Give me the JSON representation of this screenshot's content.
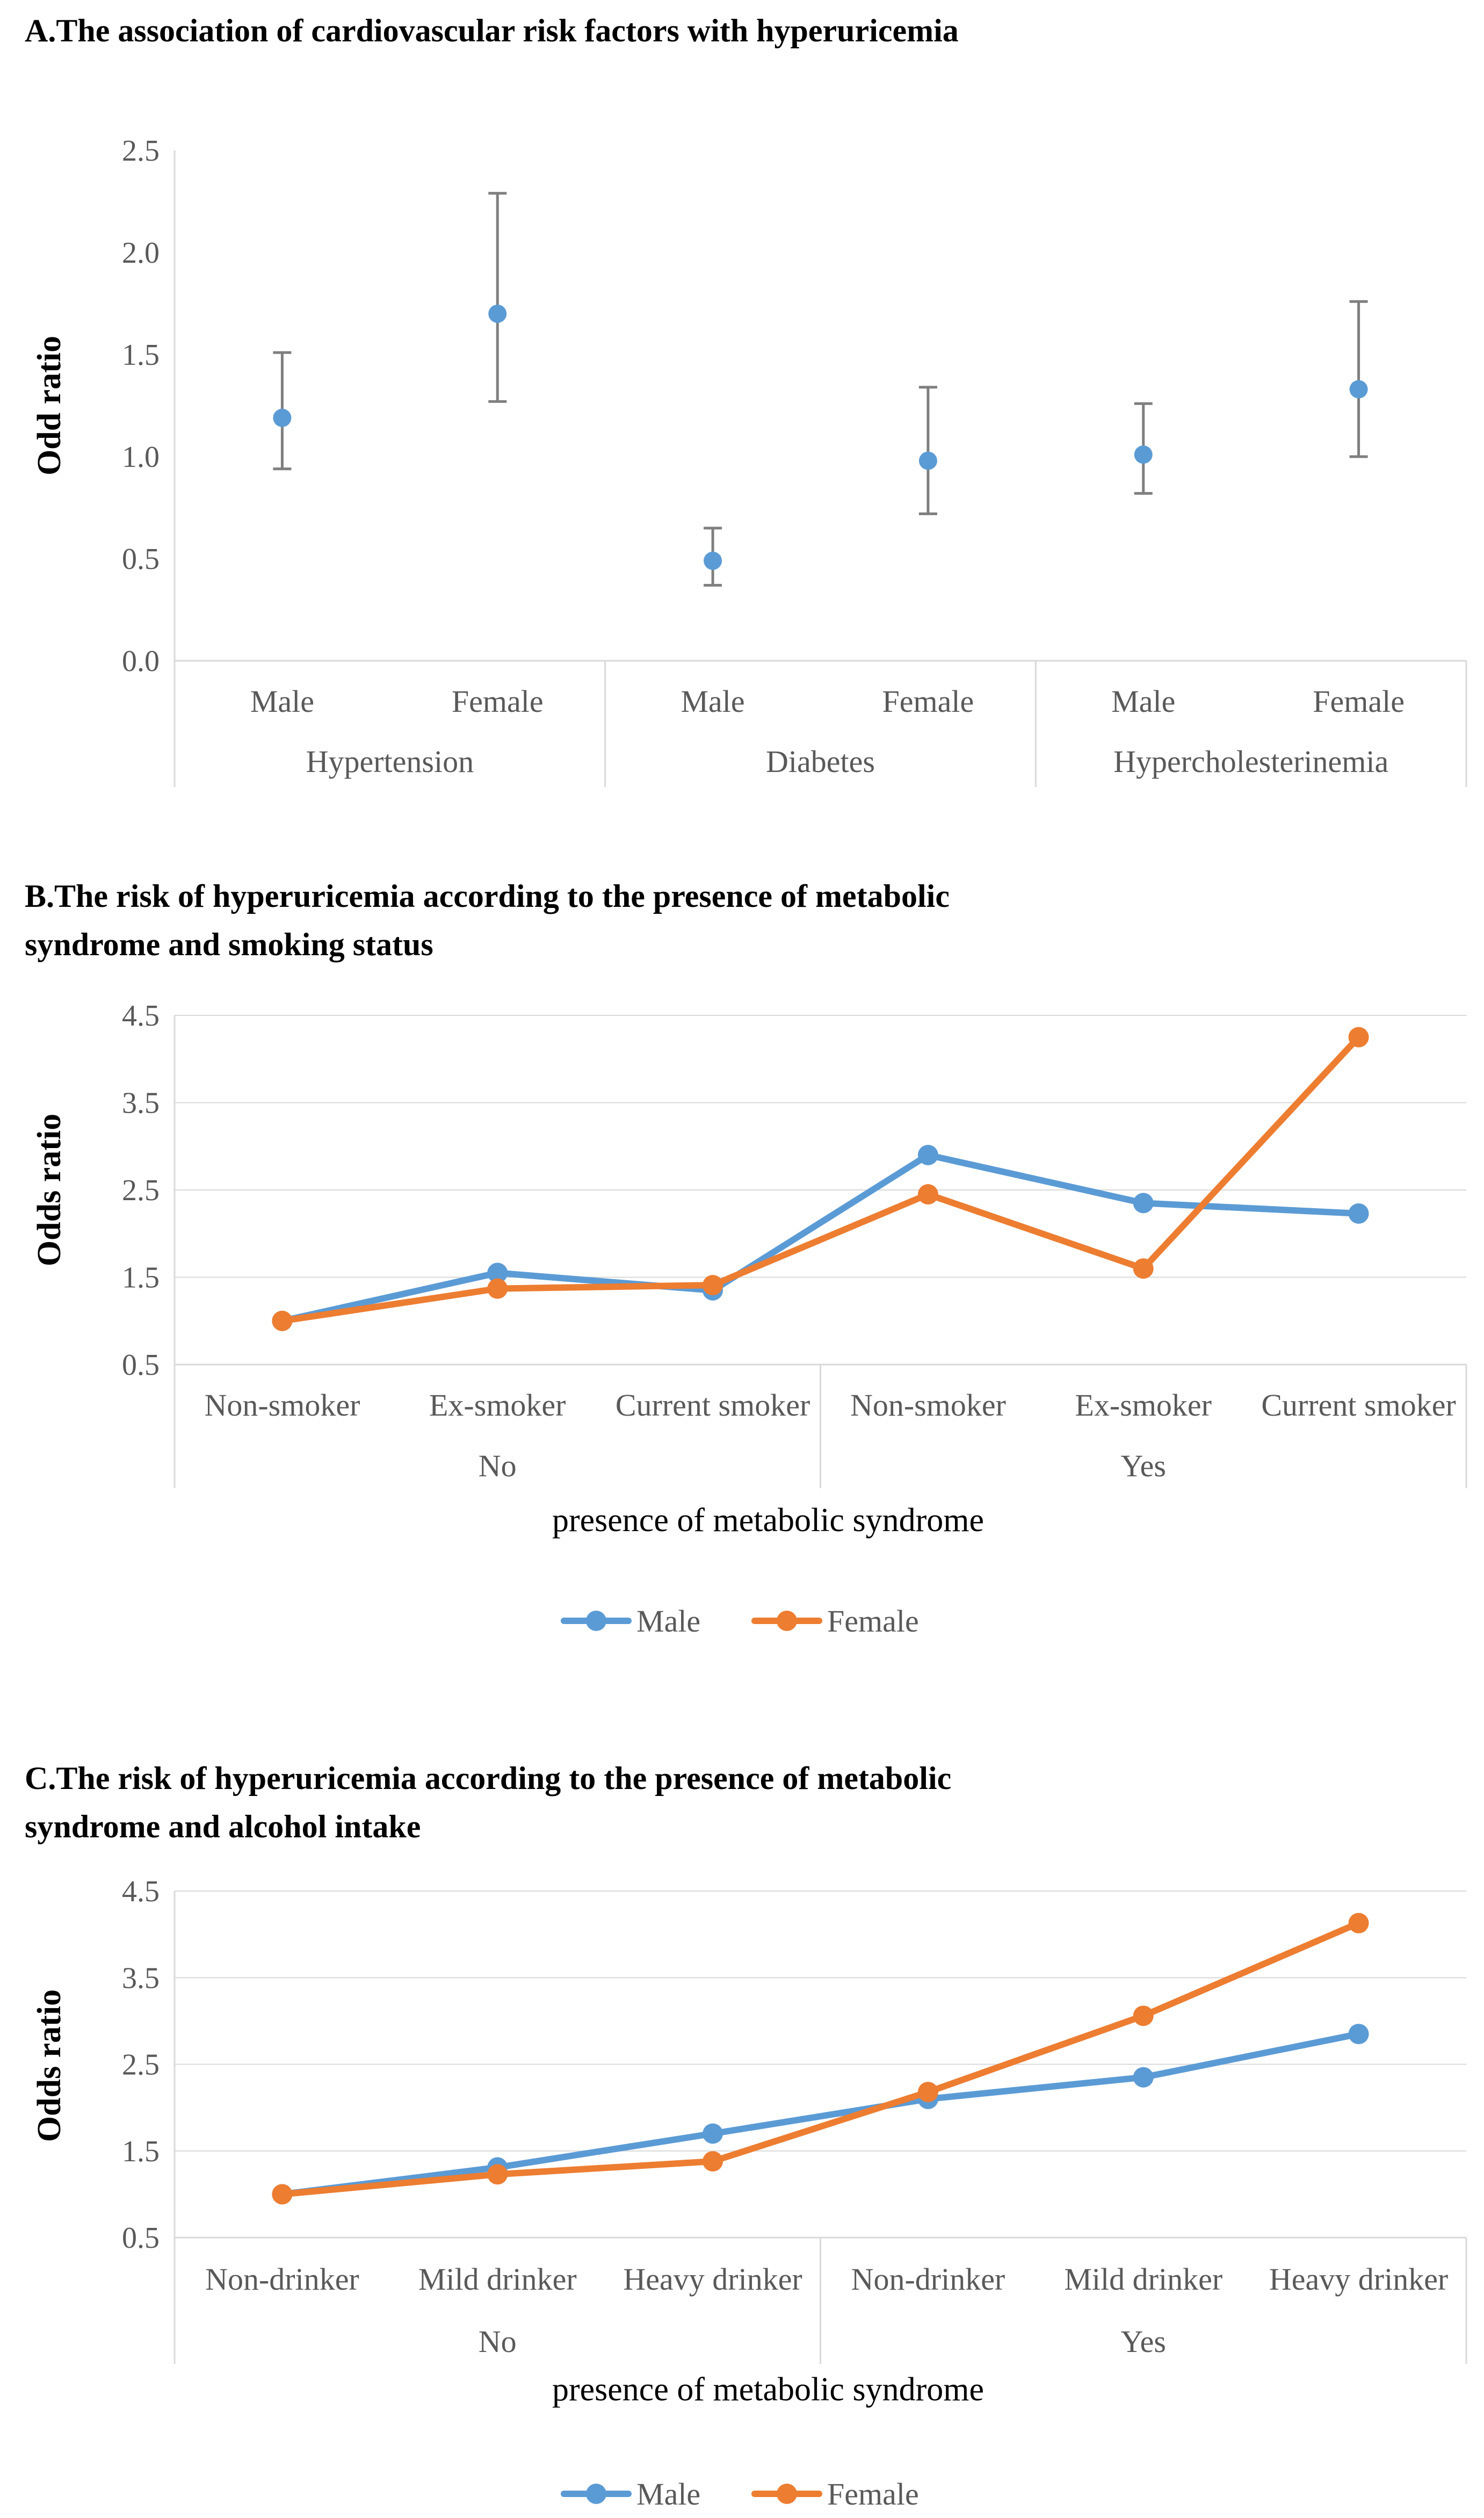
{
  "chart_data": [
    {
      "type": "scatter",
      "subtype": "error-bar",
      "title": "A.The association of cardiovascular risk factors with hyperuricemia",
      "ylabel": "Odd ratio",
      "ylim": [
        0,
        2.5
      ],
      "yticks": [
        "0.0",
        "0.5",
        "1.0",
        "1.5",
        "2.0",
        "2.5"
      ],
      "groups": [
        {
          "label": "Hypertension",
          "categories": [
            "Male",
            "Female"
          ]
        },
        {
          "label": "Diabetes",
          "categories": [
            "Male",
            "Female"
          ]
        },
        {
          "label": "Hypercholesterinemia",
          "categories": [
            "Male",
            "Female"
          ]
        }
      ],
      "values": [
        1.19,
        1.7,
        0.49,
        0.98,
        1.01,
        1.33
      ],
      "lower": [
        0.94,
        1.27,
        0.37,
        0.72,
        0.82,
        1.0
      ],
      "upper": [
        1.51,
        2.29,
        0.65,
        1.34,
        1.26,
        1.76
      ],
      "color": "#5b9bd5",
      "errorbar_color": "#7f7f7f"
    },
    {
      "type": "line",
      "title_lines": [
        "B.The risk of hyperuricemia according to the presence of metabolic",
        "syndrome and smoking status"
      ],
      "ylabel": "Odds ratio",
      "xlabel": "presence of metabolic syndrome",
      "ylim": [
        0.5,
        4.5
      ],
      "yticks": [
        "0.5",
        "1.5",
        "2.5",
        "3.5",
        "4.5"
      ],
      "groups": [
        {
          "label": "No",
          "categories": [
            "Non-smoker",
            "Ex-smoker",
            "Current smoker"
          ]
        },
        {
          "label": "Yes",
          "categories": [
            "Non-smoker",
            "Ex-smoker",
            "Current smoker"
          ]
        }
      ],
      "series": [
        {
          "name": "Male",
          "color": "#5b9bd5",
          "values": [
            1.0,
            1.55,
            1.35,
            2.9,
            2.35,
            2.23
          ]
        },
        {
          "name": "Female",
          "color": "#ed7d31",
          "values": [
            1.0,
            1.37,
            1.41,
            2.45,
            1.6,
            4.25
          ]
        }
      ],
      "legend": "bottom"
    },
    {
      "type": "line",
      "title_lines": [
        "C.The risk of hyperuricemia according to the presence of metabolic",
        "syndrome and alcohol intake"
      ],
      "ylabel": "Odds ratio",
      "xlabel": "presence of metabolic syndrome",
      "ylim": [
        0.5,
        4.5
      ],
      "yticks": [
        "0.5",
        "1.5",
        "2.5",
        "3.5",
        "4.5"
      ],
      "groups": [
        {
          "label": "No",
          "categories": [
            "Non-drinker",
            "Mild drinker",
            "Heavy drinker"
          ]
        },
        {
          "label": "Yes",
          "categories": [
            "Non-drinker",
            "Mild drinker",
            "Heavy drinker"
          ]
        }
      ],
      "series": [
        {
          "name": "Male",
          "color": "#5b9bd5",
          "values": [
            1.0,
            1.31,
            1.7,
            2.1,
            2.35,
            2.85
          ]
        },
        {
          "name": "Female",
          "color": "#ed7d31",
          "values": [
            1.0,
            1.23,
            1.38,
            2.18,
            3.06,
            4.13
          ]
        }
      ],
      "legend": "bottom"
    }
  ]
}
